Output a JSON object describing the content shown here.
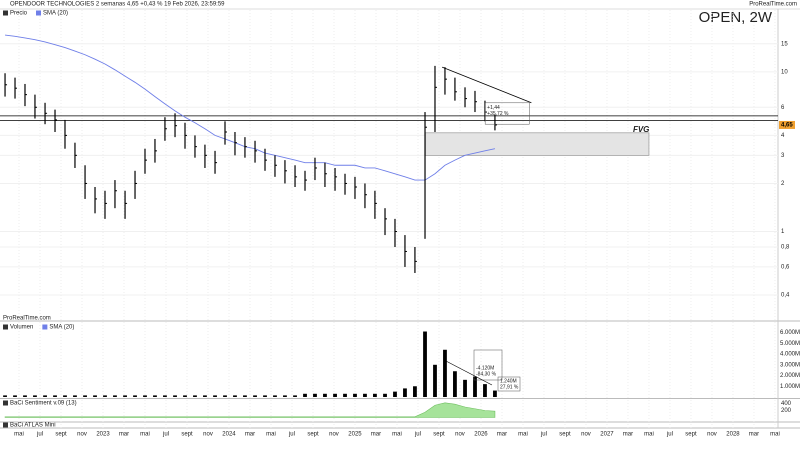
{
  "header": {
    "title": "OPENDOOR TECHNOLOGIES 2 semanas 4,65 +0,43 % 19 Feb 2026, 23:59:59",
    "brand": "ProRealTime.com",
    "symbol": "OPEN, 2W"
  },
  "x_axis": {
    "xlim": [
      2.19,
      76.29
    ],
    "xticks": [
      {
        "value": 4,
        "label": "mai"
      },
      {
        "value": 6,
        "label": "jul"
      },
      {
        "value": 8,
        "label": "sept"
      },
      {
        "value": 10,
        "label": "nov"
      },
      {
        "value": 12,
        "label": "2023"
      },
      {
        "value": 14,
        "label": "mar"
      },
      {
        "value": 16,
        "label": "mai"
      },
      {
        "value": 18,
        "label": "jul"
      },
      {
        "value": 20,
        "label": "sept"
      },
      {
        "value": 22,
        "label": "nov"
      },
      {
        "value": 24,
        "label": "2024"
      },
      {
        "value": 26,
        "label": "mar"
      },
      {
        "value": 28,
        "label": "mai"
      },
      {
        "value": 30,
        "label": "jul"
      },
      {
        "value": 32,
        "label": "sept"
      },
      {
        "value": 34,
        "label": "nov"
      },
      {
        "value": 36,
        "label": "2025"
      },
      {
        "value": 38,
        "label": "mar"
      },
      {
        "value": 40,
        "label": "mai"
      },
      {
        "value": 42,
        "label": "jul"
      },
      {
        "value": 44,
        "label": "sept"
      },
      {
        "value": 46,
        "label": "nov"
      },
      {
        "value": 48,
        "label": "2026"
      },
      {
        "value": 50,
        "label": "mar"
      },
      {
        "value": 52,
        "label": "mai"
      },
      {
        "value": 54,
        "label": "jul"
      },
      {
        "value": 56,
        "label": "sept"
      },
      {
        "value": 58,
        "label": "nov"
      },
      {
        "value": 60,
        "label": "2027"
      },
      {
        "value": 62,
        "label": "mar"
      },
      {
        "value": 64,
        "label": "mai"
      },
      {
        "value": 66,
        "label": "jul"
      },
      {
        "value": 68,
        "label": "sept"
      },
      {
        "value": 70,
        "label": "nov"
      },
      {
        "value": 72,
        "label": "2028"
      },
      {
        "value": 74,
        "label": "mar"
      },
      {
        "value": 76,
        "label": "mai"
      }
    ]
  },
  "chart_data": [
    {
      "type": "ohlc",
      "legend": [
        "Precio",
        "SMA (20)"
      ],
      "watermark": "ProRealTime.com",
      "log_scale": true,
      "grid": true,
      "ylim": [
        0.3,
        24.4
      ],
      "yticks": [
        15,
        10,
        6,
        4,
        3,
        2,
        1,
        {
          "value": 0.8,
          "label": "0,8"
        },
        {
          "value": 0.6,
          "label": "0,6"
        },
        {
          "value": 0.4,
          "label": "0,4"
        }
      ],
      "x": [
        2.67,
        3.62,
        4.57,
        5.52,
        6.48,
        7.43,
        8.38,
        9.33,
        10.29,
        11.24,
        12.19,
        13.14,
        14.1,
        15.05,
        16,
        16.95,
        17.9,
        18.86,
        19.81,
        20.76,
        21.71,
        22.67,
        23.62,
        24.57,
        25.52,
        26.48,
        27.43,
        28.38,
        29.33,
        30.29,
        31.24,
        32.19,
        33.14,
        34.1,
        35.05,
        36,
        36.95,
        37.9,
        38.86,
        39.81,
        40.76,
        41.71,
        42.67,
        43.62,
        44.57,
        45.52,
        46.48,
        47.43,
        48.38,
        49.33
      ],
      "high": [
        9.8,
        9.2,
        8.4,
        7.2,
        6.4,
        5.8,
        5.0,
        3.6,
        2.6,
        1.9,
        1.8,
        2.1,
        1.8,
        2.4,
        3.3,
        3.8,
        5.2,
        5.5,
        4.8,
        4.0,
        3.5,
        3.2,
        4.9,
        4.2,
        3.9,
        3.7,
        3.3,
        3.0,
        2.8,
        2.6,
        2.4,
        2.9,
        2.7,
        2.5,
        2.3,
        2.2,
        2.0,
        1.8,
        1.4,
        1.2,
        0.95,
        0.8,
        5.6,
        10.9,
        10.7,
        9.2,
        8.0,
        7.6,
        6.6,
        5.4
      ],
      "low": [
        7.0,
        6.8,
        6.1,
        5.1,
        4.7,
        4.2,
        3.3,
        2.5,
        1.6,
        1.3,
        1.2,
        1.4,
        1.2,
        1.6,
        2.3,
        2.7,
        3.7,
        3.9,
        3.3,
        2.9,
        2.5,
        2.3,
        3.5,
        3.0,
        2.9,
        2.7,
        2.4,
        2.2,
        2.0,
        1.9,
        1.8,
        2.1,
        1.9,
        1.8,
        1.7,
        1.6,
        1.4,
        1.2,
        0.95,
        0.8,
        0.6,
        0.55,
        0.9,
        4.2,
        7.2,
        6.6,
        6.0,
        5.6,
        4.9,
        4.3
      ],
      "close": [
        8.3,
        7.9,
        7.2,
        6.0,
        5.5,
        5.0,
        4.0,
        3.0,
        2.0,
        1.6,
        1.5,
        1.8,
        1.5,
        2.0,
        2.8,
        3.2,
        4.4,
        4.6,
        4.0,
        3.4,
        3.0,
        2.7,
        4.2,
        3.6,
        3.4,
        3.2,
        2.8,
        2.6,
        2.4,
        2.2,
        2.1,
        2.5,
        2.3,
        2.2,
        2.0,
        1.9,
        1.7,
        1.5,
        1.2,
        1.0,
        0.75,
        0.65,
        4.5,
        8.0,
        9.0,
        7.5,
        6.8,
        6.5,
        5.6,
        4.65
      ],
      "bar_color": "#000000",
      "sma": {
        "name": "SMA (20)",
        "color": "#6f7fe8",
        "values": [
          17.0,
          16.7,
          16.3,
          15.9,
          15.4,
          14.8,
          14.2,
          13.5,
          12.8,
          12.0,
          11.2,
          10.3,
          9.4,
          8.6,
          7.8,
          7.0,
          6.3,
          5.7,
          5.2,
          4.8,
          4.4,
          4.0,
          3.8,
          3.6,
          3.4,
          3.3,
          3.1,
          3.0,
          2.9,
          2.8,
          2.7,
          2.7,
          2.7,
          2.6,
          2.6,
          2.6,
          2.5,
          2.5,
          2.4,
          2.3,
          2.2,
          2.1,
          2.1,
          2.3,
          2.6,
          2.8,
          3.0,
          3.1,
          3.2,
          3.3
        ]
      },
      "last_price": {
        "value": 4.65,
        "label": "4,65",
        "color": "#f0a030"
      },
      "levels": [
        5.3,
        4.95
      ],
      "trendline": {
        "x": [
          44.3,
          52.8
        ],
        "y": [
          10.7,
          6.4
        ]
      },
      "fvg": {
        "label": "FVG",
        "x": [
          42.7,
          64
        ],
        "top": 4.15,
        "bottom": 3.0
      },
      "measure": {
        "x": [
          48.4,
          52.6
        ],
        "top": 6.4,
        "bottom": 4.7,
        "lines": [
          "+1,44",
          "+35,72 %"
        ]
      }
    },
    {
      "type": "bar",
      "legend": [
        "Volumen",
        "SMA (20)"
      ],
      "color": "#000000",
      "ylim": [
        0,
        6800000
      ],
      "yticks": [
        {
          "value": 1000000,
          "label": "1.000M"
        },
        {
          "value": 2000000,
          "label": "2.000M"
        },
        {
          "value": 3000000,
          "label": "3.000M"
        },
        {
          "value": 4000000,
          "label": "4.000M"
        },
        {
          "value": 5000000,
          "label": "5.000M"
        },
        {
          "value": 6000000,
          "label": "6.000M"
        }
      ],
      "values": [
        150000,
        150000,
        150000,
        150000,
        150000,
        150000,
        150000,
        150000,
        150000,
        150000,
        150000,
        150000,
        150000,
        150000,
        150000,
        150000,
        150000,
        150000,
        150000,
        150000,
        150000,
        150000,
        150000,
        150000,
        150000,
        150000,
        150000,
        150000,
        150000,
        150000,
        300000,
        300000,
        300000,
        300000,
        300000,
        300000,
        300000,
        300000,
        300000,
        500000,
        800000,
        1000000,
        6100000,
        3000000,
        4400000,
        2400000,
        1600000,
        1900000,
        1200000,
        600000
      ],
      "annotations": [
        {
          "lines": [
            "-4.120M",
            "-84,30 %"
          ]
        },
        {
          "lines": [
            "1.240M",
            "27,91 %"
          ]
        }
      ]
    },
    {
      "type": "area",
      "legend": [
        "BaCi Sentiment v.09 (13)"
      ],
      "color": "#a6e39a",
      "ylim": [
        -100,
        500
      ],
      "yticks": [
        200,
        400
      ],
      "values": [
        20,
        20,
        20,
        20,
        20,
        20,
        20,
        20,
        20,
        20,
        20,
        20,
        20,
        20,
        20,
        20,
        20,
        20,
        20,
        20,
        20,
        20,
        20,
        20,
        20,
        20,
        20,
        20,
        20,
        20,
        20,
        20,
        20,
        20,
        20,
        20,
        20,
        20,
        20,
        20,
        20,
        20,
        150,
        350,
        420,
        380,
        300,
        250,
        200,
        180
      ]
    },
    {
      "type": "panel",
      "legend": [
        "BaCi ATLAS Mini"
      ]
    }
  ]
}
